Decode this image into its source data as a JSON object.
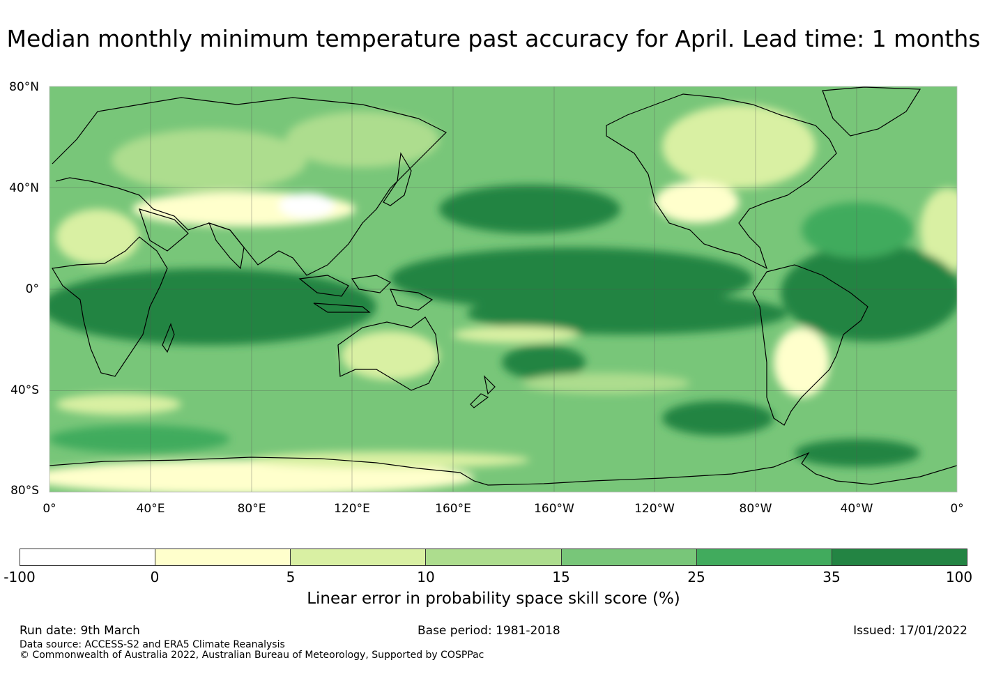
{
  "title": "Median monthly minimum temperature past accuracy for April. Lead time: 1 months",
  "map": {
    "lat_labels": [
      "80°N",
      "40°N",
      "0°",
      "40°S",
      "80°S"
    ],
    "lon_labels": [
      "0°",
      "40°E",
      "80°E",
      "120°E",
      "160°E",
      "160°W",
      "120°W",
      "80°W",
      "40°W",
      "0°"
    ],
    "gridlines": true
  },
  "colorbar": {
    "ticks": [
      "-100",
      "0",
      "5",
      "10",
      "15",
      "25",
      "35",
      "100"
    ],
    "colors": [
      "#ffffff",
      "#ffffcc",
      "#d9f0a3",
      "#addd8e",
      "#78c679",
      "#41ab5d",
      "#238443"
    ],
    "label": "Linear error in probability space skill score (%)"
  },
  "footer": {
    "run_date": "Run date: 9th March",
    "base_period": "Base period: 1981-2018",
    "issued": "Issued: 17/01/2022",
    "data_source": "Data source: ACCESS-S2 and ERA5 Climate Reanalysis",
    "copyright": "© Commonwealth of Australia 2022, Australian Bureau of Meteorology, Supported by COSPPac"
  }
}
